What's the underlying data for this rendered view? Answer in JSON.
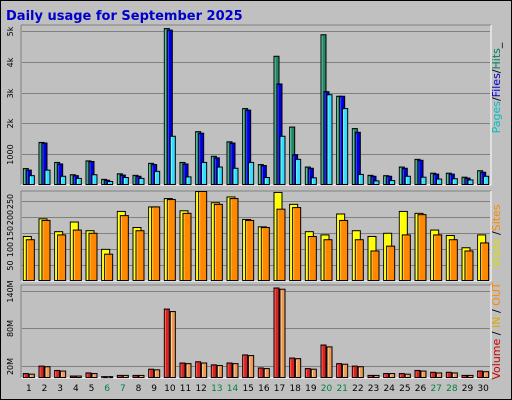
{
  "chart_data": {
    "type": "bar",
    "title": "Daily usage for September 2025",
    "categories": [
      "1",
      "2",
      "3",
      "4",
      "5",
      "6",
      "7",
      "8",
      "9",
      "10",
      "11",
      "12",
      "13",
      "14",
      "15",
      "16",
      "17",
      "18",
      "19",
      "20",
      "21",
      "22",
      "23",
      "24",
      "25",
      "26",
      "27",
      "28",
      "29",
      "30"
    ],
    "weekend_days": [
      "6",
      "7",
      "13",
      "14",
      "20",
      "21",
      "27",
      "28"
    ],
    "panels": [
      {
        "name": "pages-files-hits",
        "ylim": [
          0,
          5200
        ],
        "yticks": [
          1000,
          2000,
          3000,
          4000,
          5000
        ],
        "ytick_labels": [
          "1000",
          "2k",
          "3k",
          "4k",
          "5k"
        ],
        "side_label": [
          "Pages",
          "/",
          "Files",
          "/",
          "Hits",
          "_"
        ],
        "side_colors": [
          "#00c0c0",
          "#000000",
          "#0000cc",
          "#000000",
          "#008060",
          "#000000"
        ],
        "series": [
          {
            "name": "Hits",
            "color": "#228866",
            "values": [
              550,
              1400,
              750,
              350,
              800,
              200,
              380,
              330,
              720,
              5100,
              750,
              1750,
              950,
              1420,
              2500,
              680,
              4200,
              1900,
              600,
              4900,
              2900,
              1850,
              330,
              320,
              600,
              850,
              400,
              400,
              270,
              480
            ]
          },
          {
            "name": "Files",
            "color": "#0000dd",
            "values": [
              500,
              1380,
              700,
              320,
              780,
              170,
              340,
              300,
              680,
              5050,
              700,
              1700,
              900,
              1380,
              2450,
              650,
              3300,
              1000,
              560,
              3050,
              2900,
              1730,
              300,
              300,
              560,
              820,
              370,
              370,
              240,
              430
            ]
          },
          {
            "name": "Pages",
            "color": "#33ddff",
            "values": [
              320,
              500,
              300,
              230,
              350,
              130,
              260,
              230,
              460,
              1600,
              280,
              750,
              600,
              560,
              750,
              260,
              1600,
              850,
              250,
              2950,
              2500,
              360,
              150,
              160,
              300,
              270,
              210,
              220,
              180,
              300
            ]
          }
        ]
      },
      {
        "name": "visits-sites",
        "ylim": [
          0,
          280
        ],
        "yticks": [
          50,
          100,
          150,
          200,
          250
        ],
        "ytick_labels": [
          "50",
          "100",
          "150",
          "200",
          "250"
        ],
        "side_label": [
          "Visits",
          " /",
          "Sites"
        ],
        "side_colors": [
          "#dddd00",
          "#000000",
          "#ff8800"
        ],
        "series": [
          {
            "name": "Visits",
            "color": "#ffff00",
            "values": [
              140,
              195,
              155,
              185,
              158,
              100,
              218,
              168,
              232,
              258,
              220,
              283,
              245,
              263,
              193,
              170,
              277,
              240,
              155,
              145,
              210,
              158,
              140,
              150,
              218,
              212,
              160,
              143,
              105,
              145
            ]
          },
          {
            "name": "Sites",
            "color": "#ff8800",
            "values": [
              130,
              190,
              145,
              160,
              150,
              85,
              205,
              158,
              232,
              255,
              212,
              283,
              240,
              258,
              190,
              168,
              225,
              230,
              140,
              130,
              190,
              130,
              95,
              110,
              145,
              208,
              145,
              130,
              95,
              120
            ]
          }
        ]
      },
      {
        "name": "volume-in-out",
        "ylim": [
          0,
          150
        ],
        "yticks": [
          20,
          80,
          140
        ],
        "ytick_labels": [
          "20M",
          "80M",
          "140M"
        ],
        "side_label": [
          "Volume",
          " / ",
          "IN",
          " / ",
          "OUT"
        ],
        "side_colors": [
          "#cc0000",
          "#000000",
          "#ddaa00",
          "#000000",
          "#ff8800"
        ],
        "series": [
          {
            "name": "Volume",
            "color": "#dd2222",
            "values": [
              8,
              20,
              13,
              4,
              9,
              3,
              5,
              5,
              15,
              112,
              25,
              27,
              22,
              25,
              38,
              17,
              146,
              33,
              16,
              54,
              24,
              20,
              5,
              8,
              8,
              13,
              10,
              10,
              5,
              12
            ]
          },
          {
            "name": "IN",
            "color": "#ddaa00",
            "values": [
              0,
              0,
              0,
              0,
              0,
              0,
              0,
              0,
              0,
              0,
              0,
              0,
              0,
              0,
              0,
              0,
              0,
              0,
              0,
              0,
              0,
              0,
              0,
              0,
              0,
              0,
              0,
              0,
              0,
              0
            ]
          },
          {
            "name": "OUT",
            "color": "#ee9955",
            "values": [
              7,
              19,
              12,
              4,
              8,
              3,
              5,
              5,
              14,
              108,
              24,
              25,
              21,
              24,
              37,
              16,
              144,
              32,
              15,
              51,
              23,
              19,
              5,
              8,
              7,
              12,
              9,
              9,
              5,
              11
            ]
          }
        ]
      }
    ]
  }
}
